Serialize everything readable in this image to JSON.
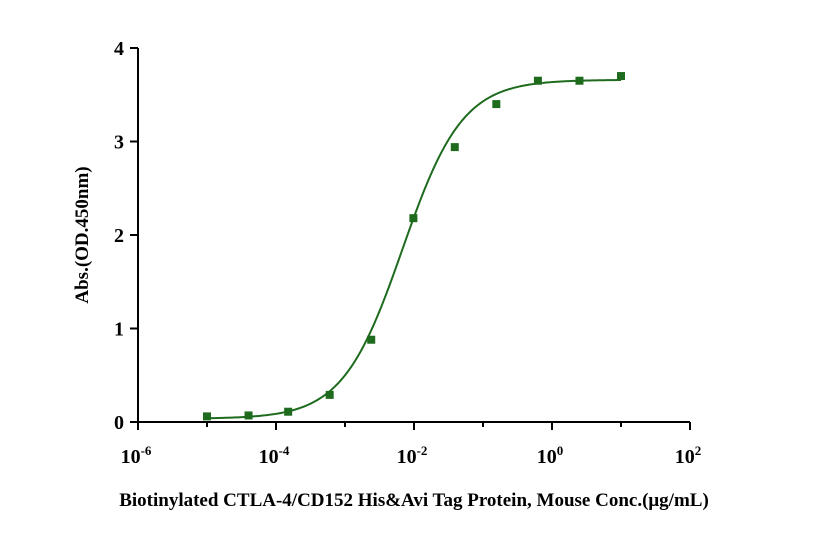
{
  "chart_data": {
    "type": "scatter",
    "title": "",
    "xlabel": "Biotinylated CTLA-4/CD152 His&Avi Tag Protein, Mouse Conc.(μg/mL)",
    "ylabel": "Abs.(OD.450nm)",
    "x_scale": "log10",
    "xlim": [
      1e-06,
      100
    ],
    "ylim": [
      0,
      4
    ],
    "x_ticks": [
      {
        "value": 1e-06,
        "base": "10",
        "exp": "-6"
      },
      {
        "value": 0.0001,
        "base": "10",
        "exp": "-4"
      },
      {
        "value": 0.01,
        "base": "10",
        "exp": "-2"
      },
      {
        "value": 1,
        "base": "10",
        "exp": "0"
      },
      {
        "value": 100,
        "base": "10",
        "exp": "2"
      }
    ],
    "y_ticks": [
      "0",
      "1",
      "2",
      "3",
      "4"
    ],
    "grid": false,
    "legend": "none",
    "color": "#1e6b1e",
    "series": [
      {
        "marker": "square",
        "x": [
          1e-05,
          4e-05,
          0.00015,
          0.0006,
          0.0024,
          0.0098,
          0.039,
          0.156,
          0.625,
          2.5,
          10
        ],
        "y": [
          0.06,
          0.07,
          0.11,
          0.29,
          0.88,
          2.18,
          2.94,
          3.4,
          3.65,
          3.65,
          3.7
        ]
      }
    ],
    "fit": {
      "model": "4PL",
      "bottom": 0.035,
      "top": 3.66,
      "ec50": 0.0068,
      "hill": 1.0
    }
  }
}
